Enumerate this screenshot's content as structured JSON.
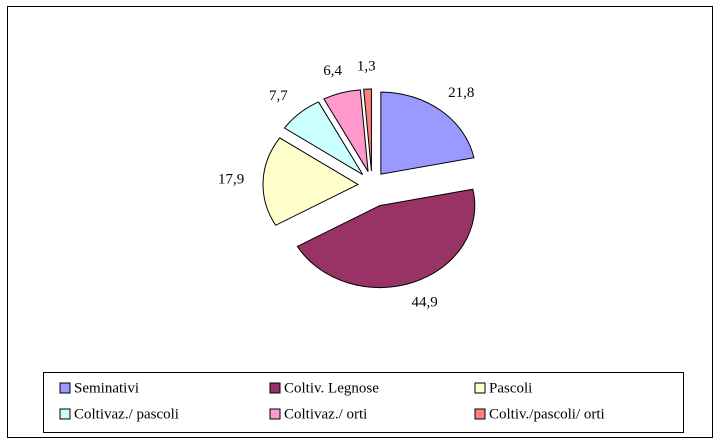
{
  "chart_data": {
    "type": "pie",
    "categories": [
      "Seminativi",
      "Coltiv. Legnose",
      "Pascoli",
      "Coltivaz./ pascoli",
      "Coltivaz./ orti",
      "Coltiv./pascoli/ orti"
    ],
    "values": [
      21.8,
      44.9,
      17.9,
      7.7,
      6.4,
      1.3
    ],
    "value_labels": [
      "21,8",
      "44,9",
      "17,9",
      "7,7",
      "6,4",
      "1,3"
    ],
    "colors": [
      "#9999ff",
      "#993366",
      "#ffffcc",
      "#ccffff",
      "#ff99cc",
      "#ff7f7f"
    ]
  }
}
